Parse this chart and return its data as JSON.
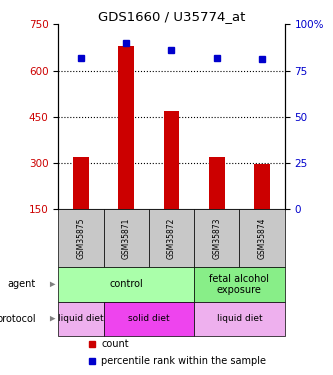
{
  "title": "GDS1660 / U35774_at",
  "samples": [
    "GSM35875",
    "GSM35871",
    "GSM35872",
    "GSM35873",
    "GSM35874"
  ],
  "counts": [
    320,
    680,
    470,
    320,
    295
  ],
  "percentiles": [
    82,
    90,
    86,
    82,
    81
  ],
  "ylim_left": [
    150,
    750
  ],
  "ylim_right": [
    0,
    100
  ],
  "yticks_left": [
    150,
    300,
    450,
    600,
    750
  ],
  "yticks_right": [
    0,
    25,
    50,
    75,
    100
  ],
  "bar_color": "#cc0000",
  "dot_color": "#0000cc",
  "bar_bottom": 150,
  "agent_groups": [
    {
      "label": "control",
      "cols": [
        0,
        1,
        2
      ],
      "color": "#aaffaa"
    },
    {
      "label": "fetal alcohol\nexposure",
      "cols": [
        3,
        4
      ],
      "color": "#88ee88"
    }
  ],
  "protocol_groups": [
    {
      "label": "liquid diet",
      "cols": [
        0
      ],
      "color": "#eeb0ee"
    },
    {
      "label": "solid diet",
      "cols": [
        1,
        2
      ],
      "color": "#ee44ee"
    },
    {
      "label": "liquid diet",
      "cols": [
        3,
        4
      ],
      "color": "#eeb0ee"
    }
  ],
  "sample_bg_color": "#c8c8c8",
  "legend_red_label": "count",
  "legend_blue_label": "percentile rank within the sample",
  "left_label_color": "#cc0000",
  "right_label_color": "#0000cc"
}
